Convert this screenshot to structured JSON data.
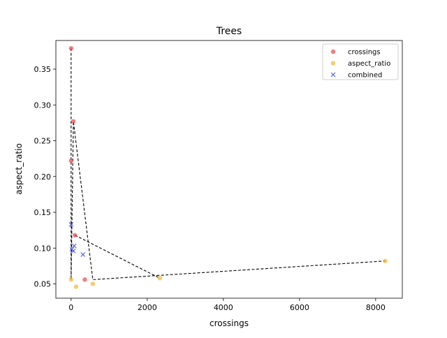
{
  "chart_data": {
    "type": "scatter",
    "title": "Trees",
    "xlabel": "crossings",
    "ylabel": "aspect_ratio",
    "xlim": [
      -400,
      8700
    ],
    "ylim": [
      0.03,
      0.39
    ],
    "x_ticks": [
      0,
      2000,
      4000,
      6000,
      8000
    ],
    "x_tick_labels": [
      "0",
      "2000",
      "4000",
      "6000",
      "8000"
    ],
    "y_ticks": [
      0.05,
      0.1,
      0.15,
      0.2,
      0.25,
      0.3,
      0.35
    ],
    "y_tick_labels": [
      "0.05",
      "0.10",
      "0.15",
      "0.20",
      "0.25",
      "0.30",
      "0.35"
    ],
    "grid": false,
    "legend_position": "top-right",
    "series": [
      {
        "name": "crossings",
        "marker": "circle",
        "color": "#e8474c",
        "points": [
          {
            "x": 0,
            "y": 0.379
          },
          {
            "x": 60,
            "y": 0.277
          },
          {
            "x": 0,
            "y": 0.222
          },
          {
            "x": 100,
            "y": 0.118
          },
          {
            "x": 360,
            "y": 0.056
          }
        ]
      },
      {
        "name": "aspect_ratio",
        "marker": "circle",
        "color": "#f5b731",
        "points": [
          {
            "x": 0,
            "y": 0.056
          },
          {
            "x": 130,
            "y": 0.046
          },
          {
            "x": 570,
            "y": 0.05
          },
          {
            "x": 2330,
            "y": 0.058
          },
          {
            "x": 8250,
            "y": 0.082
          }
        ]
      },
      {
        "name": "combined",
        "marker": "x",
        "color": "#3b48e0",
        "points": [
          {
            "x": 0,
            "y": 0.133
          },
          {
            "x": 80,
            "y": 0.103
          },
          {
            "x": 20,
            "y": 0.098
          },
          {
            "x": 60,
            "y": 0.096
          },
          {
            "x": 310,
            "y": 0.091
          }
        ]
      }
    ],
    "connector_path": [
      {
        "x": 0,
        "y": 0.379
      },
      {
        "x": 0,
        "y": 0.222
      },
      {
        "x": 0,
        "y": 0.056
      },
      {
        "x": 60,
        "y": 0.277
      },
      {
        "x": 570,
        "y": 0.056
      },
      {
        "x": 8250,
        "y": 0.082
      }
    ],
    "connector_path_2": [
      {
        "x": 100,
        "y": 0.118
      },
      {
        "x": 2330,
        "y": 0.058
      }
    ],
    "connector_color": "#000000"
  }
}
